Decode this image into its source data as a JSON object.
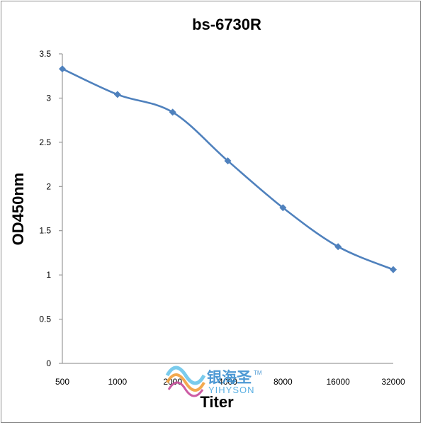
{
  "chart_data": {
    "type": "line",
    "title": "bs-6730R",
    "xlabel": "Titer",
    "ylabel": "OD450nm",
    "categories": [
      "500",
      "1000",
      "2000",
      "4000",
      "8000",
      "16000",
      "32000"
    ],
    "series": [
      {
        "values": [
          3.33,
          3.04,
          2.84,
          2.29,
          1.76,
          1.32,
          1.06
        ],
        "color": "#4f81bd",
        "marker": "diamond"
      }
    ],
    "ylim": [
      0,
      3.5
    ],
    "yticks": [
      "0",
      "0.5",
      "1",
      "1.5",
      "2",
      "2.5",
      "3",
      "3.5"
    ],
    "grid": false,
    "legend": "none"
  },
  "watermark": {
    "cn": "银海圣",
    "en": "YIHYSON",
    "tm": "TM"
  }
}
